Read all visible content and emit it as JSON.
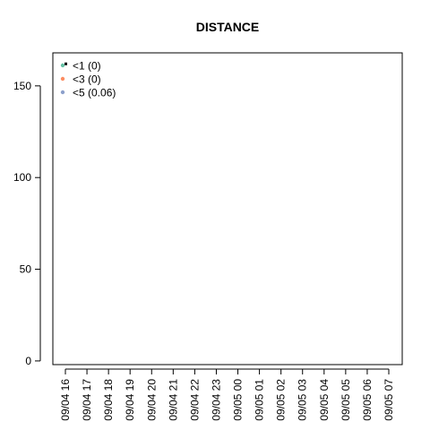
{
  "chart_data": {
    "type": "scatter",
    "title": "DISTANCE",
    "xlabel": "",
    "ylabel": "",
    "x_categories": [
      "09/04 16",
      "09/04 17",
      "09/04 18",
      "09/04 19",
      "09/04 20",
      "09/04 21",
      "09/04 22",
      "09/04 23",
      "09/05 00",
      "09/05 01",
      "09/05 02",
      "09/05 03",
      "09/05 04",
      "09/05 05",
      "09/05 06",
      "09/05 07"
    ],
    "ylim": [
      -2,
      168
    ],
    "y_ticks": [
      0,
      50,
      100,
      150
    ],
    "grid": false,
    "legend_position": "top-left",
    "series": [
      {
        "name": "<1 (0)",
        "color": "#66c2a5",
        "points": [
          {
            "x": "09/04 16",
            "y": 162
          }
        ]
      },
      {
        "name": "<3 (0)",
        "color": "#fc8d62",
        "points": []
      },
      {
        "name": "<5 (0.06)",
        "color": "#8da0cb",
        "points": []
      }
    ]
  }
}
